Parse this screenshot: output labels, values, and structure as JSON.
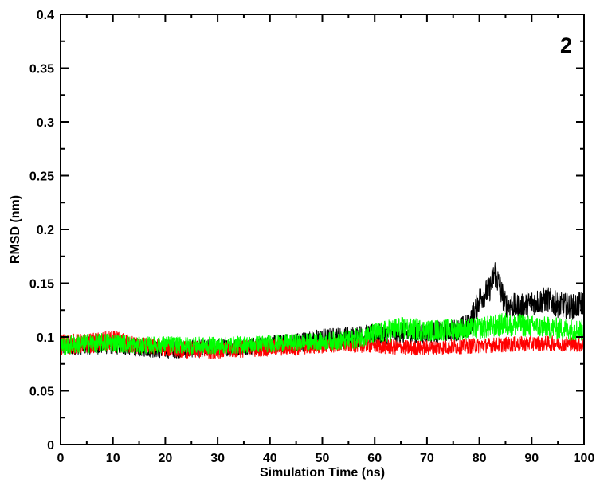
{
  "chart_data": {
    "type": "line",
    "title": "",
    "panel_label": "2",
    "xlabel": "Simulation Time (ns)",
    "ylabel": "RMSD (nm)",
    "xlim": [
      0,
      100
    ],
    "ylim": [
      0,
      0.4
    ],
    "x_ticks": [
      0,
      10,
      20,
      30,
      40,
      50,
      60,
      70,
      80,
      90,
      100
    ],
    "y_ticks": [
      0,
      0.05,
      0.1,
      0.15,
      0.2,
      0.25,
      0.3,
      0.35,
      0.4
    ],
    "x_tick_labels": [
      "0",
      "10",
      "20",
      "30",
      "40",
      "50",
      "60",
      "70",
      "80",
      "90",
      "100"
    ],
    "y_tick_labels": [
      "0",
      "0.05",
      "0.1",
      "0.15",
      "0.2",
      "0.25",
      "0.3",
      "0.35",
      "0.4"
    ],
    "grid": false,
    "legend": "none",
    "series": [
      {
        "color": "#000000",
        "x": [
          0,
          5,
          10,
          15,
          20,
          25,
          30,
          35,
          40,
          45,
          50,
          55,
          60,
          65,
          70,
          75,
          78,
          80,
          82,
          83,
          85,
          88,
          90,
          93,
          95,
          98,
          100
        ],
        "y": [
          0.09,
          0.092,
          0.093,
          0.09,
          0.088,
          0.089,
          0.09,
          0.091,
          0.093,
          0.095,
          0.098,
          0.1,
          0.102,
          0.103,
          0.104,
          0.106,
          0.11,
          0.135,
          0.145,
          0.16,
          0.13,
          0.128,
          0.132,
          0.135,
          0.13,
          0.128,
          0.132
        ],
        "noise": [
          0.008,
          0.008,
          0.009,
          0.008,
          0.008,
          0.008,
          0.008,
          0.008,
          0.008,
          0.009,
          0.01,
          0.01,
          0.01,
          0.01,
          0.01,
          0.01,
          0.012,
          0.012,
          0.012,
          0.014,
          0.012,
          0.012,
          0.012,
          0.012,
          0.012,
          0.012,
          0.012
        ]
      },
      {
        "color": "#ff0000",
        "x": [
          0,
          5,
          10,
          15,
          20,
          25,
          30,
          35,
          40,
          45,
          50,
          55,
          60,
          65,
          70,
          75,
          80,
          85,
          90,
          95,
          100
        ],
        "y": [
          0.093,
          0.094,
          0.096,
          0.092,
          0.09,
          0.088,
          0.088,
          0.089,
          0.09,
          0.091,
          0.092,
          0.093,
          0.092,
          0.09,
          0.09,
          0.091,
          0.092,
          0.093,
          0.094,
          0.094,
          0.093
        ],
        "noise": [
          0.01,
          0.009,
          0.01,
          0.008,
          0.008,
          0.008,
          0.008,
          0.008,
          0.008,
          0.008,
          0.007,
          0.007,
          0.007,
          0.007,
          0.007,
          0.007,
          0.007,
          0.007,
          0.007,
          0.007,
          0.007
        ]
      },
      {
        "color": "#00ff00",
        "x": [
          0,
          5,
          10,
          15,
          20,
          25,
          30,
          35,
          40,
          45,
          50,
          55,
          60,
          65,
          70,
          75,
          80,
          85,
          90,
          95,
          100
        ],
        "y": [
          0.092,
          0.094,
          0.095,
          0.092,
          0.093,
          0.092,
          0.092,
          0.093,
          0.094,
          0.095,
          0.096,
          0.097,
          0.103,
          0.108,
          0.106,
          0.107,
          0.108,
          0.112,
          0.11,
          0.108,
          0.106
        ],
        "noise": [
          0.009,
          0.009,
          0.009,
          0.008,
          0.008,
          0.008,
          0.008,
          0.008,
          0.008,
          0.008,
          0.008,
          0.009,
          0.01,
          0.011,
          0.01,
          0.01,
          0.01,
          0.011,
          0.01,
          0.01,
          0.01
        ]
      }
    ]
  }
}
